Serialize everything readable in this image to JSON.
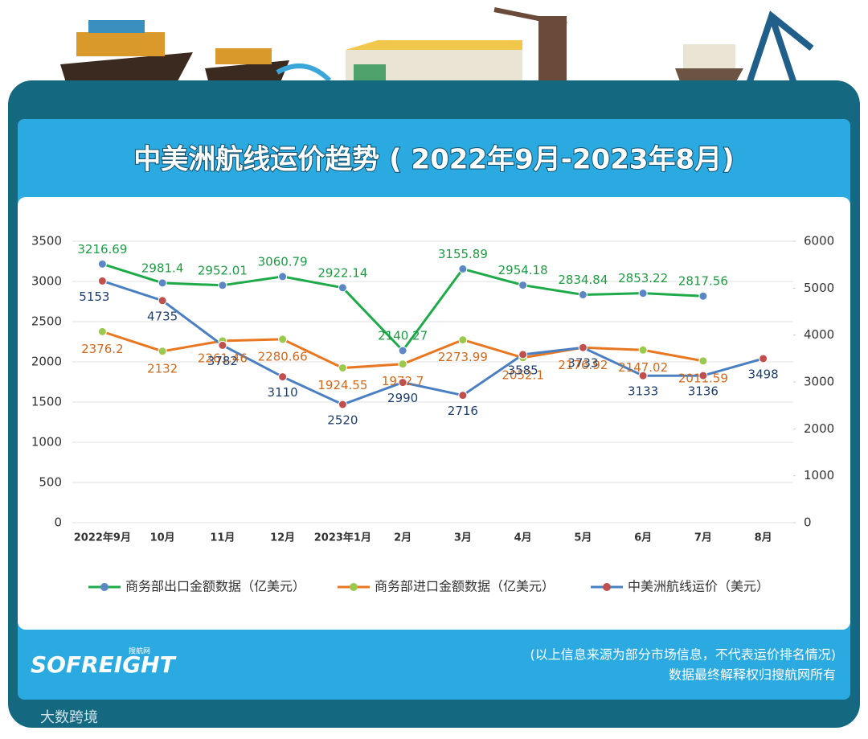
{
  "chart_data": {
    "type": "line",
    "title": "中美洲航线运价趋势 ( 2022年9月-2023年8月)",
    "categories": [
      "2022年9月",
      "10月",
      "11月",
      "12月",
      "2023年1月",
      "2月",
      "3月",
      "4月",
      "5月",
      "6月",
      "7月",
      "8月"
    ],
    "series": [
      {
        "name": "商务部出口金额数据（亿美元）",
        "color": "#1faa4a",
        "marker_color": "#5b87c5",
        "values": [
          3216.69,
          2981.4,
          2952.01,
          3060.79,
          2922.14,
          2140.27,
          3155.89,
          2954.18,
          2834.84,
          2853.22,
          2817.56,
          null
        ]
      },
      {
        "name": "商务部进口金额数据（亿美元）",
        "color": "#e87722",
        "marker_color": "#9bc94f",
        "values": [
          2376.2,
          2132,
          2261.46,
          2280.66,
          1924.55,
          1972.7,
          2273.99,
          2052.1,
          2176.92,
          2147.02,
          2011.59,
          null
        ]
      },
      {
        "name": "中美洲航线运价（美元）",
        "color": "#4a7fc1",
        "marker_color": "#c0504d",
        "axis": "y2",
        "values": [
          5153,
          4735,
          3782,
          3110,
          2520,
          2990,
          2716,
          3585,
          3733,
          3133,
          3136,
          3498
        ]
      }
    ],
    "ylim": [
      0,
      3500
    ],
    "yticks": [
      0,
      500,
      1000,
      1500,
      2000,
      2500,
      3000,
      3500
    ],
    "y2lim": [
      0,
      6000
    ],
    "y2ticks": [
      0,
      1000,
      2000,
      3000,
      4000,
      5000,
      6000
    ],
    "grid": true,
    "legend": "bottom"
  },
  "footer": {
    "brand": "SOFREIGHT",
    "brand_sub": "搜航网",
    "note": "(以上信息来源为部分市场信息，不代表运价排名情况)",
    "rights": "数据最终解释权归搜航网所有",
    "watermark": "大数跨境"
  }
}
